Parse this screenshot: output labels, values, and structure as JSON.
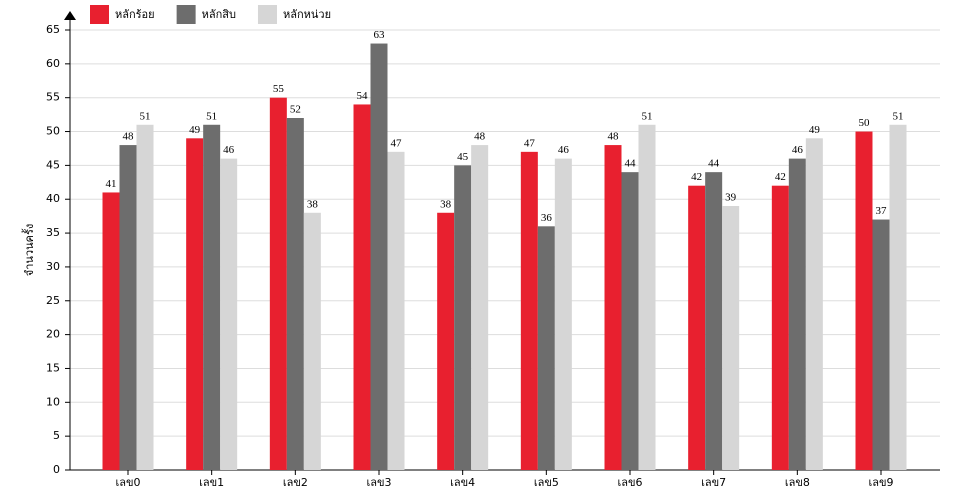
{
  "chart_data": {
    "type": "bar",
    "y_label": "จำนวนครั้ง",
    "categories": [
      "เลข0",
      "เลข1",
      "เลข2",
      "เลข3",
      "เลข4",
      "เลข5",
      "เลข6",
      "เลข7",
      "เลข8",
      "เลข9"
    ],
    "series": [
      {
        "name": "หลักร้อย",
        "color": "#e8202f",
        "values": [
          41,
          49,
          55,
          54,
          38,
          47,
          48,
          42,
          42,
          50
        ]
      },
      {
        "name": "หลักสิบ",
        "color": "#6d6d6d",
        "values": [
          48,
          51,
          52,
          63,
          45,
          36,
          44,
          44,
          46,
          37
        ]
      },
      {
        "name": "หลักหน่วย",
        "color": "#d6d6d6",
        "values": [
          51,
          46,
          38,
          47,
          48,
          46,
          51,
          39,
          49,
          51
        ]
      }
    ],
    "ylim": [
      0,
      65
    ],
    "yticks": [
      0,
      5,
      10,
      15,
      20,
      25,
      30,
      35,
      40,
      45,
      50,
      55,
      60,
      65
    ],
    "grid": true
  }
}
